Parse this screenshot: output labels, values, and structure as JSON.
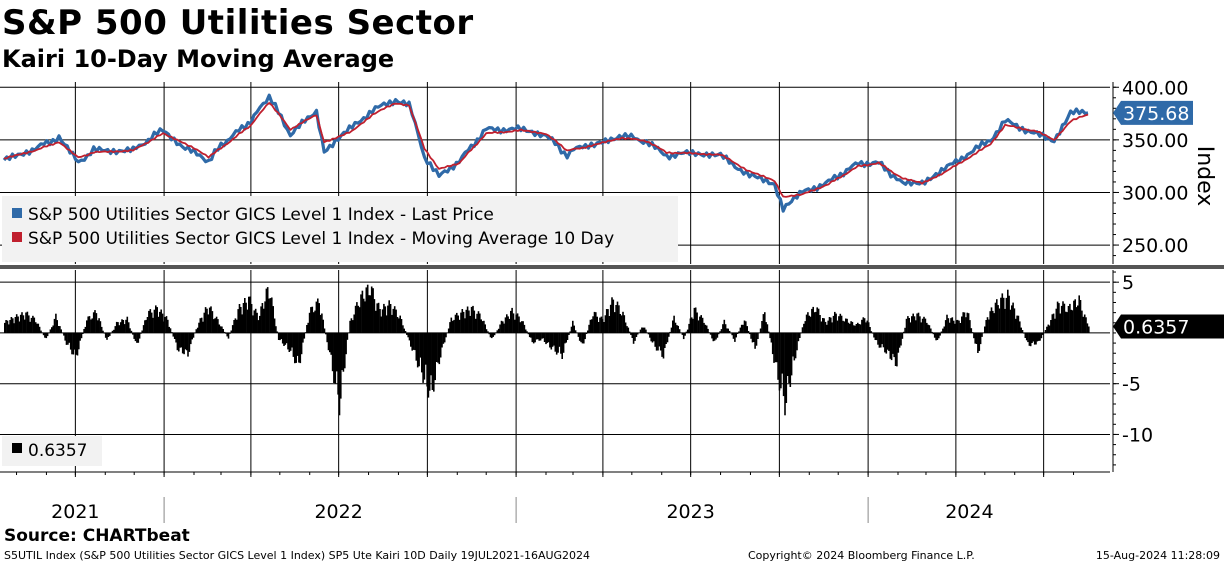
{
  "header": {
    "title": "S&P 500 Utilities Sector",
    "subtitle": "Kairi 10-Day Moving Average"
  },
  "footer": {
    "source": "Source: CHARTbeat",
    "ticker_line": "S5UTIL Index (S&P 500 Utilities Sector GICS Level 1 Index) SP5 Ute Kairi 10D  Daily 19JUL2021-16AUG2024",
    "copyright": "Copyright© 2024 Bloomberg Finance L.P.",
    "timestamp": "15-Aug-2024 11:28:09"
  },
  "colors": {
    "price": "#2f6aa8",
    "moving_average": "#c0202e",
    "kairi_bars": "#000000",
    "grid": "#000000",
    "legend_bg": "#f2f2f2",
    "last_price_tag": "#2f6aa8",
    "last_kairi_tag": "#000000"
  },
  "chart_data": [
    {
      "type": "line",
      "panel": "upper",
      "ylabel": "Index",
      "ylim": [
        232,
        405
      ],
      "yticks": [
        250,
        300,
        350,
        400
      ],
      "ytick_labels": [
        "250.00",
        "300.00",
        "350.00",
        "400.00"
      ],
      "x_range": [
        "2021-07-19",
        "2024-08-16"
      ],
      "last_value_label": "375.68",
      "grid": true,
      "legend_position": "lower-left",
      "series": [
        {
          "name": "S&P 500 Utilities Sector GICS Level 1 Index - Last Price",
          "color": "#2f6aa8",
          "points": [
            [
              "2021-07-19",
              330
            ],
            [
              "2021-08-20",
              342
            ],
            [
              "2021-09-14",
              352
            ],
            [
              "2021-10-04",
              328
            ],
            [
              "2021-10-20",
              340
            ],
            [
              "2021-11-30",
              340
            ],
            [
              "2021-12-31",
              360
            ],
            [
              "2022-01-20",
              344
            ],
            [
              "2022-02-16",
              330
            ],
            [
              "2022-03-01",
              345
            ],
            [
              "2022-04-01",
              368
            ],
            [
              "2022-04-20",
              392
            ],
            [
              "2022-05-12",
              355
            ],
            [
              "2022-06-08",
              378
            ],
            [
              "2022-06-16",
              340
            ],
            [
              "2022-07-15",
              362
            ],
            [
              "2022-08-05",
              378
            ],
            [
              "2022-08-29",
              388
            ],
            [
              "2022-09-12",
              385
            ],
            [
              "2022-09-28",
              334
            ],
            [
              "2022-10-13",
              315
            ],
            [
              "2022-11-03",
              330
            ],
            [
              "2022-12-01",
              360
            ],
            [
              "2023-01-06",
              360
            ],
            [
              "2023-02-01",
              355
            ],
            [
              "2023-02-23",
              335
            ],
            [
              "2023-03-08",
              345
            ],
            [
              "2023-03-23",
              344
            ],
            [
              "2023-04-21",
              355
            ],
            [
              "2023-05-16",
              348
            ],
            [
              "2023-06-06",
              335
            ],
            [
              "2023-07-06",
              338
            ],
            [
              "2023-08-01",
              335
            ],
            [
              "2023-08-31",
              316
            ],
            [
              "2023-09-26",
              308
            ],
            [
              "2023-10-05",
              285
            ],
            [
              "2023-10-25",
              300
            ],
            [
              "2023-11-21",
              310
            ],
            [
              "2023-12-22",
              328
            ],
            [
              "2024-01-12",
              328
            ],
            [
              "2024-02-06",
              308
            ],
            [
              "2024-02-26",
              310
            ],
            [
              "2024-03-20",
              322
            ],
            [
              "2024-04-16",
              338
            ],
            [
              "2024-05-07",
              350
            ],
            [
              "2024-05-22",
              368
            ],
            [
              "2024-06-24",
              355
            ],
            [
              "2024-07-12",
              350
            ],
            [
              "2024-07-29",
              376
            ],
            [
              "2024-08-16",
              375.68
            ]
          ]
        },
        {
          "name": "S&P 500 Utilities Sector GICS Level 1 Index - Moving Average 10 Day",
          "color": "#c0202e",
          "points": [
            [
              "2021-07-19",
              332
            ],
            [
              "2021-08-20",
              340
            ],
            [
              "2021-09-14",
              348
            ],
            [
              "2021-10-04",
              333
            ],
            [
              "2021-10-20",
              338
            ],
            [
              "2021-11-30",
              340
            ],
            [
              "2021-12-31",
              356
            ],
            [
              "2022-01-20",
              348
            ],
            [
              "2022-02-16",
              334
            ],
            [
              "2022-03-01",
              342
            ],
            [
              "2022-04-01",
              364
            ],
            [
              "2022-04-20",
              386
            ],
            [
              "2022-05-12",
              360
            ],
            [
              "2022-06-08",
              374
            ],
            [
              "2022-06-16",
              348
            ],
            [
              "2022-07-15",
              358
            ],
            [
              "2022-08-05",
              374
            ],
            [
              "2022-08-29",
              385
            ],
            [
              "2022-09-12",
              383
            ],
            [
              "2022-09-28",
              342
            ],
            [
              "2022-10-13",
              322
            ],
            [
              "2022-11-03",
              328
            ],
            [
              "2022-12-01",
              356
            ],
            [
              "2023-01-06",
              359
            ],
            [
              "2023-02-01",
              356
            ],
            [
              "2023-02-23",
              340
            ],
            [
              "2023-03-08",
              342
            ],
            [
              "2023-03-23",
              345
            ],
            [
              "2023-04-21",
              352
            ],
            [
              "2023-05-16",
              349
            ],
            [
              "2023-06-06",
              338
            ],
            [
              "2023-07-06",
              337
            ],
            [
              "2023-08-01",
              336
            ],
            [
              "2023-08-31",
              320
            ],
            [
              "2023-09-26",
              311
            ],
            [
              "2023-10-05",
              296
            ],
            [
              "2023-10-25",
              298
            ],
            [
              "2023-11-21",
              308
            ],
            [
              "2023-12-22",
              325
            ],
            [
              "2024-01-12",
              328
            ],
            [
              "2024-02-06",
              313
            ],
            [
              "2024-02-26",
              309
            ],
            [
              "2024-03-20",
              319
            ],
            [
              "2024-04-16",
              334
            ],
            [
              "2024-05-07",
              346
            ],
            [
              "2024-05-22",
              364
            ],
            [
              "2024-06-24",
              358
            ],
            [
              "2024-07-12",
              350
            ],
            [
              "2024-07-29",
              368
            ],
            [
              "2024-08-16",
              374
            ]
          ]
        }
      ]
    },
    {
      "type": "bar",
      "panel": "lower",
      "name": "SP5 Ute Kairi 10D",
      "ylim": [
        -13.7,
        6.2
      ],
      "yticks": [
        -10,
        -5,
        5
      ],
      "ytick_labels": [
        "-10",
        "-5",
        "5"
      ],
      "last_value_label": "0.6357",
      "legend_label": "0.6357",
      "grid": true,
      "legend_position": "lower-left",
      "x_range": [
        "2021-07-19",
        "2024-08-16"
      ],
      "categories": [
        "2021-07-19",
        "2021-07-30",
        "2021-08-10",
        "2021-08-20",
        "2021-08-31",
        "2021-09-10",
        "2021-09-21",
        "2021-10-01",
        "2021-10-12",
        "2021-10-22",
        "2021-11-02",
        "2021-11-12",
        "2021-11-23",
        "2021-12-03",
        "2021-12-14",
        "2021-12-24",
        "2022-01-04",
        "2022-01-14",
        "2022-01-25",
        "2022-02-04",
        "2022-02-15",
        "2022-02-25",
        "2022-03-08",
        "2022-03-18",
        "2022-03-29",
        "2022-04-08",
        "2022-04-19",
        "2022-04-29",
        "2022-05-10",
        "2022-05-20",
        "2022-05-31",
        "2022-06-10",
        "2022-06-21",
        "2022-07-01",
        "2022-07-12",
        "2022-07-22",
        "2022-08-02",
        "2022-08-12",
        "2022-08-23",
        "2022-09-02",
        "2022-09-13",
        "2022-09-23",
        "2022-10-04",
        "2022-10-14",
        "2022-10-25",
        "2022-11-04",
        "2022-11-15",
        "2022-11-25",
        "2022-12-06",
        "2022-12-16",
        "2022-12-27",
        "2023-01-06",
        "2023-01-17",
        "2023-01-27",
        "2023-02-07",
        "2023-02-17",
        "2023-02-28",
        "2023-03-10",
        "2023-03-21",
        "2023-03-31",
        "2023-04-11",
        "2023-04-21",
        "2023-05-02",
        "2023-05-12",
        "2023-05-23",
        "2023-06-02",
        "2023-06-13",
        "2023-06-23",
        "2023-07-04",
        "2023-07-14",
        "2023-07-25",
        "2023-08-04",
        "2023-08-15",
        "2023-08-25",
        "2023-09-05",
        "2023-09-15",
        "2023-09-26",
        "2023-10-06",
        "2023-10-17",
        "2023-10-27",
        "2023-11-07",
        "2023-11-17",
        "2023-11-28",
        "2023-12-08",
        "2023-12-19",
        "2023-12-29",
        "2024-01-09",
        "2024-01-19",
        "2024-01-30",
        "2024-02-09",
        "2024-02-20",
        "2024-03-01",
        "2024-03-12",
        "2024-03-22",
        "2024-04-02",
        "2024-04-12",
        "2024-04-23",
        "2024-05-03",
        "2024-05-14",
        "2024-05-24",
        "2024-06-04",
        "2024-06-14",
        "2024-06-25",
        "2024-07-05",
        "2024-07-16",
        "2024-07-26",
        "2024-08-06",
        "2024-08-16"
      ],
      "values": [
        1.2,
        1.8,
        2.2,
        1.5,
        -0.8,
        1.9,
        -1.2,
        -2.8,
        1.5,
        2.4,
        -0.9,
        1.1,
        1.6,
        -1.5,
        2.2,
        2.8,
        1.5,
        -1.8,
        -2.4,
        0.9,
        3.1,
        1.4,
        -0.6,
        2.7,
        3.9,
        1.8,
        5.3,
        -0.7,
        -1.9,
        -3.8,
        2.4,
        3.6,
        -2.5,
        -8.2,
        1.2,
        3.9,
        5.2,
        2.6,
        3.3,
        1.8,
        -1.4,
        -4.2,
        -7.1,
        -2.5,
        1.6,
        2.3,
        2.8,
        1.9,
        -0.8,
        1.2,
        2.5,
        1.5,
        -1.1,
        -0.7,
        -1.8,
        -2.6,
        1.2,
        -1.6,
        2.3,
        1.5,
        3.8,
        2.2,
        -1.1,
        0.9,
        -1.4,
        -2.6,
        1.8,
        -0.7,
        2.7,
        1.4,
        -1.2,
        1.3,
        -0.9,
        1.6,
        -1.9,
        2.5,
        -3.8,
        -8.2,
        -2.5,
        1.8,
        2.9,
        1.2,
        2.2,
        1.5,
        0.9,
        1.8,
        -1.2,
        -2.1,
        -3.5,
        1.6,
        2.1,
        1.4,
        -1.1,
        1.8,
        1.3,
        2.6,
        -2.4,
        1.9,
        3.6,
        4.3,
        1.7,
        -1.4,
        -1.1,
        0.9,
        3.4,
        2.8,
        3.8,
        0.6357
      ]
    }
  ],
  "x_axis": {
    "year_labels": [
      {
        "label": "2021",
        "center_date": "2021-10-01"
      },
      {
        "label": "2022",
        "center_date": "2022-07-01"
      },
      {
        "label": "2023",
        "center_date": "2023-07-01"
      },
      {
        "label": "2024",
        "center_date": "2024-04-15"
      }
    ],
    "year_boundaries": [
      "2022-01-01",
      "2023-01-01",
      "2024-01-01"
    ],
    "quarter_dates": [
      "2021-10-01",
      "2022-01-01",
      "2022-04-01",
      "2022-07-01",
      "2022-10-01",
      "2023-01-01",
      "2023-04-01",
      "2023-07-01",
      "2023-10-01",
      "2024-01-01",
      "2024-04-01",
      "2024-07-01"
    ]
  }
}
